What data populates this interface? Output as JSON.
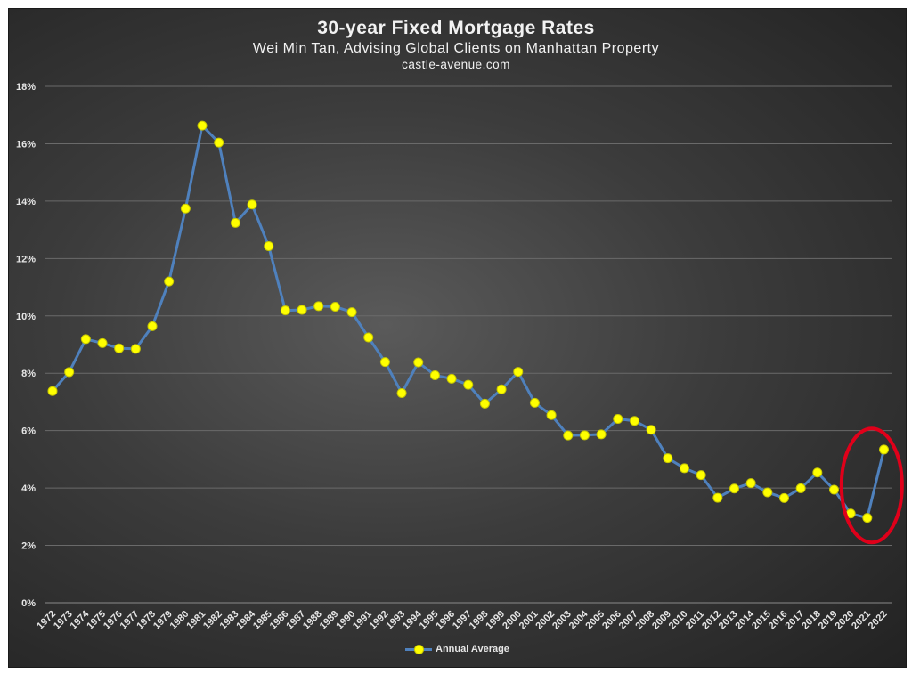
{
  "chart_data": {
    "type": "line",
    "title": "30-year Fixed Mortgage Rates",
    "subtitle": "Wei Min Tan, Advising Global Clients on Manhattan Property",
    "website": "castle-avenue.com",
    "xlabel": "",
    "ylabel": "",
    "ylim": [
      0,
      18
    ],
    "ytick_labels": [
      "0%",
      "2%",
      "4%",
      "6%",
      "8%",
      "10%",
      "12%",
      "14%",
      "16%",
      "18%"
    ],
    "grid": true,
    "legend_position": "bottom",
    "categories": [
      "1972",
      "1973",
      "1974",
      "1975",
      "1976",
      "1977",
      "1978",
      "1979",
      "1980",
      "1981",
      "1982",
      "1983",
      "1984",
      "1985",
      "1986",
      "1987",
      "1988",
      "1989",
      "1990",
      "1991",
      "1992",
      "1993",
      "1994",
      "1995",
      "1996",
      "1997",
      "1998",
      "1999",
      "2000",
      "2001",
      "2002",
      "2003",
      "2004",
      "2005",
      "2006",
      "2007",
      "2008",
      "2009",
      "2010",
      "2011",
      "2012",
      "2013",
      "2014",
      "2015",
      "2016",
      "2017",
      "2018",
      "2019",
      "2020",
      "2021",
      "2022"
    ],
    "series": [
      {
        "name": "Annual Average",
        "values": [
          7.38,
          8.04,
          9.19,
          9.05,
          8.87,
          8.85,
          9.64,
          11.2,
          13.74,
          16.63,
          16.04,
          13.24,
          13.88,
          12.43,
          10.19,
          10.21,
          10.34,
          10.32,
          10.13,
          9.25,
          8.39,
          7.31,
          8.38,
          7.93,
          7.81,
          7.6,
          6.94,
          7.44,
          8.05,
          6.97,
          6.54,
          5.83,
          5.84,
          5.87,
          6.41,
          6.34,
          6.03,
          5.04,
          4.69,
          4.45,
          3.66,
          3.98,
          4.17,
          3.85,
          3.65,
          3.99,
          4.54,
          3.94,
          3.11,
          2.96,
          5.34
        ]
      }
    ],
    "annotation": "red ellipse around 2020-2022",
    "colors": {
      "line": "#4f81bd",
      "marker": "#ffff00",
      "annotation": "#e0001a",
      "text": "#f2f2f2"
    }
  }
}
